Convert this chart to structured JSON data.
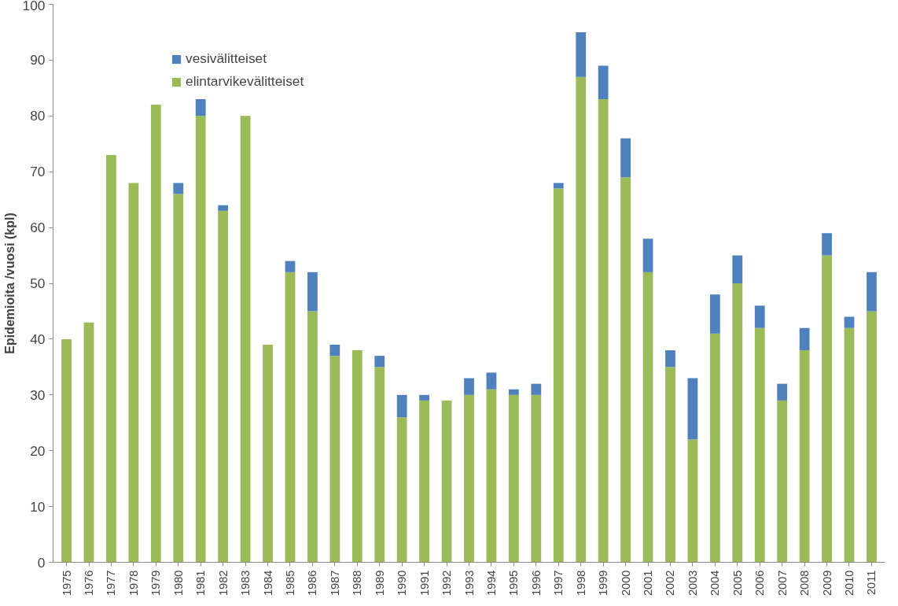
{
  "chart_data": {
    "type": "bar",
    "stacked": true,
    "ylabel": "Epidemioita /vuosi (kpl)",
    "categories": [
      "1975",
      "1976",
      "1977",
      "1978",
      "1979",
      "1980",
      "1981",
      "1982",
      "1983",
      "1984",
      "1985",
      "1986",
      "1987",
      "1988",
      "1989",
      "1990",
      "1991",
      "1992",
      "1993",
      "1994",
      "1995",
      "1996",
      "1997",
      "1998",
      "1999",
      "2000",
      "2001",
      "2002",
      "2003",
      "2004",
      "2005",
      "2006",
      "2007",
      "2008",
      "2009",
      "2010",
      "2011"
    ],
    "series": [
      {
        "name": "elintarvikevälitteiset",
        "color": "#9bbb59",
        "values": [
          40,
          43,
          73,
          68,
          82,
          66,
          80,
          63,
          80,
          39,
          52,
          45,
          37,
          38,
          35,
          26,
          29,
          29,
          30,
          31,
          30,
          30,
          67,
          87,
          83,
          69,
          52,
          35,
          22,
          41,
          50,
          42,
          29,
          38,
          55,
          42,
          45
        ]
      },
      {
        "name": "vesivälitteiset",
        "color": "#4f81bd",
        "values": [
          null,
          null,
          null,
          null,
          null,
          2,
          3,
          1,
          null,
          null,
          2,
          7,
          2,
          null,
          2,
          4,
          1,
          null,
          3,
          3,
          1,
          2,
          1,
          8,
          6,
          7,
          6,
          3,
          11,
          7,
          5,
          4,
          3,
          4,
          4,
          2,
          7
        ]
      }
    ],
    "ylim": [
      0,
      100
    ],
    "yticks": [
      0,
      10,
      20,
      30,
      40,
      50,
      60,
      70,
      80,
      90,
      100
    ],
    "grid": false,
    "legend": "top left"
  }
}
